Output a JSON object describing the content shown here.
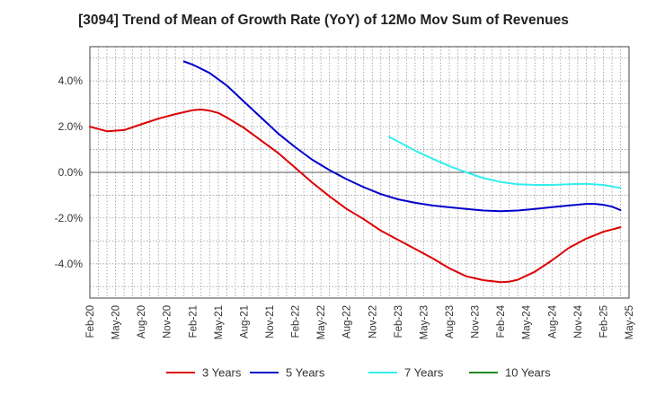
{
  "chart_data": {
    "type": "line",
    "title": "[3094]  Trend of Mean of Growth Rate (YoY) of 12Mo Mov Sum of Revenues",
    "xlabel": "",
    "ylabel": "",
    "x_ticks": [
      "Feb-20",
      "May-20",
      "Aug-20",
      "Nov-20",
      "Feb-21",
      "May-21",
      "Aug-21",
      "Nov-21",
      "Feb-22",
      "May-22",
      "Aug-22",
      "Nov-22",
      "Feb-23",
      "May-23",
      "Aug-23",
      "Nov-23",
      "Feb-24",
      "May-24",
      "Aug-24",
      "Nov-24",
      "Feb-25",
      "May-25"
    ],
    "y_ticks": [
      -4.0,
      -2.0,
      0.0,
      2.0,
      4.0
    ],
    "y_tick_labels": [
      "-4.0%",
      "-2.0%",
      "0.0%",
      "2.0%",
      "4.0%"
    ],
    "ylim": [
      -5.5,
      5.5
    ],
    "xlim_months": [
      0,
      63
    ],
    "grid": true,
    "legend_position": "bottom",
    "series": [
      {
        "name": "3 Years",
        "color": "#dd0000",
        "points": [
          [
            0,
            2.0
          ],
          [
            2,
            1.8
          ],
          [
            4,
            1.85
          ],
          [
            6,
            2.1
          ],
          [
            8,
            2.35
          ],
          [
            10,
            2.55
          ],
          [
            12,
            2.72
          ],
          [
            13,
            2.75
          ],
          [
            14,
            2.7
          ],
          [
            15,
            2.6
          ],
          [
            16,
            2.4
          ],
          [
            18,
            1.95
          ],
          [
            20,
            1.4
          ],
          [
            22,
            0.85
          ],
          [
            24,
            0.2
          ],
          [
            26,
            -0.45
          ],
          [
            28,
            -1.05
          ],
          [
            30,
            -1.6
          ],
          [
            32,
            -2.05
          ],
          [
            34,
            -2.55
          ],
          [
            36,
            -2.95
          ],
          [
            38,
            -3.35
          ],
          [
            40,
            -3.75
          ],
          [
            42,
            -4.2
          ],
          [
            44,
            -4.55
          ],
          [
            46,
            -4.72
          ],
          [
            48,
            -4.8
          ],
          [
            49,
            -4.78
          ],
          [
            50,
            -4.7
          ],
          [
            52,
            -4.35
          ],
          [
            54,
            -3.85
          ],
          [
            56,
            -3.3
          ],
          [
            58,
            -2.9
          ],
          [
            60,
            -2.6
          ],
          [
            62,
            -2.4
          ]
        ]
      },
      {
        "name": "5 Years",
        "color": "#0000cc",
        "points": [
          [
            11,
            4.85
          ],
          [
            12,
            4.72
          ],
          [
            14,
            4.35
          ],
          [
            16,
            3.8
          ],
          [
            18,
            3.1
          ],
          [
            20,
            2.4
          ],
          [
            22,
            1.7
          ],
          [
            24,
            1.1
          ],
          [
            26,
            0.55
          ],
          [
            28,
            0.1
          ],
          [
            30,
            -0.3
          ],
          [
            32,
            -0.65
          ],
          [
            34,
            -0.95
          ],
          [
            36,
            -1.18
          ],
          [
            38,
            -1.33
          ],
          [
            40,
            -1.45
          ],
          [
            42,
            -1.53
          ],
          [
            44,
            -1.6
          ],
          [
            46,
            -1.67
          ],
          [
            48,
            -1.7
          ],
          [
            50,
            -1.67
          ],
          [
            52,
            -1.6
          ],
          [
            54,
            -1.52
          ],
          [
            56,
            -1.45
          ],
          [
            58,
            -1.38
          ],
          [
            59,
            -1.38
          ],
          [
            60,
            -1.42
          ],
          [
            61,
            -1.5
          ],
          [
            62,
            -1.65
          ]
        ]
      },
      {
        "name": "7 Years",
        "color": "#33eeee",
        "points": [
          [
            35,
            1.55
          ],
          [
            36,
            1.35
          ],
          [
            38,
            0.95
          ],
          [
            40,
            0.6
          ],
          [
            42,
            0.28
          ],
          [
            44,
            0.0
          ],
          [
            46,
            -0.25
          ],
          [
            48,
            -0.42
          ],
          [
            50,
            -0.52
          ],
          [
            52,
            -0.55
          ],
          [
            54,
            -0.55
          ],
          [
            56,
            -0.52
          ],
          [
            58,
            -0.5
          ],
          [
            60,
            -0.55
          ],
          [
            62,
            -0.68
          ]
        ]
      },
      {
        "name": "10 Years",
        "color": "#228822",
        "points": []
      }
    ]
  }
}
